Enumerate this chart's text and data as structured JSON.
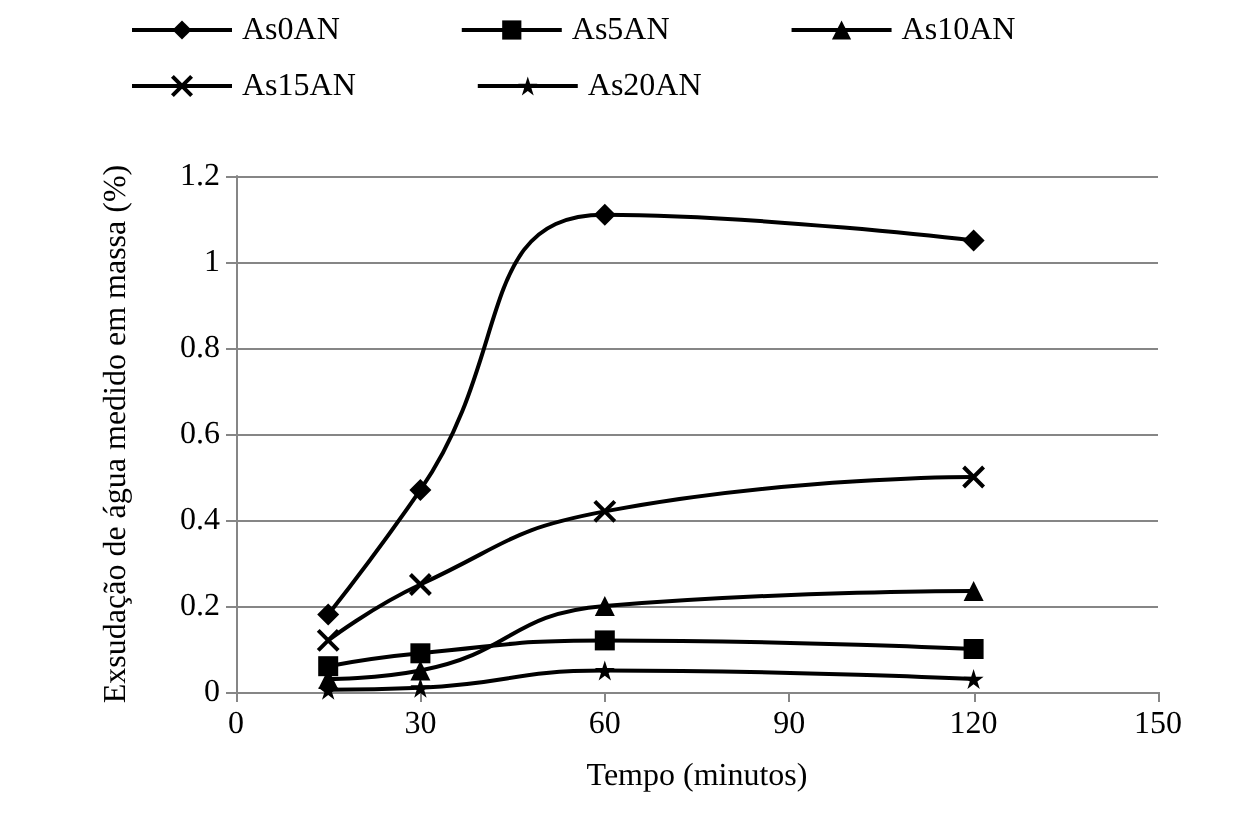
{
  "chart_data": {
    "type": "line",
    "xlabel": "Tempo (minutos)",
    "ylabel": "Exsudação de água medido em massa (%)",
    "x": [
      15,
      30,
      60,
      120
    ],
    "series": [
      {
        "name": "As0AN",
        "color": "#000000",
        "marker": "diamond",
        "values": [
          0.18,
          0.47,
          1.11,
          1.05
        ]
      },
      {
        "name": "As5AN",
        "color": "#000000",
        "marker": "square",
        "values": [
          0.06,
          0.09,
          0.12,
          0.1
        ]
      },
      {
        "name": "As10AN",
        "color": "#000000",
        "marker": "triangle",
        "values": [
          0.03,
          0.05,
          0.2,
          0.235
        ]
      },
      {
        "name": "As15AN",
        "color": "#000000",
        "marker": "cross",
        "values": [
          0.12,
          0.25,
          0.42,
          0.5
        ]
      },
      {
        "name": "As20AN",
        "color": "#000000",
        "marker": "star",
        "values": [
          0.005,
          0.01,
          0.05,
          0.03
        ]
      }
    ],
    "xlim": [
      0,
      150
    ],
    "xticks": [
      0,
      30,
      60,
      90,
      120,
      150
    ],
    "ylim": [
      0,
      1.2
    ],
    "yticks": [
      0,
      0.2,
      0.4,
      0.6,
      0.8,
      1,
      1.2
    ],
    "grid": "y",
    "legend": "top",
    "line_style": "solid"
  }
}
